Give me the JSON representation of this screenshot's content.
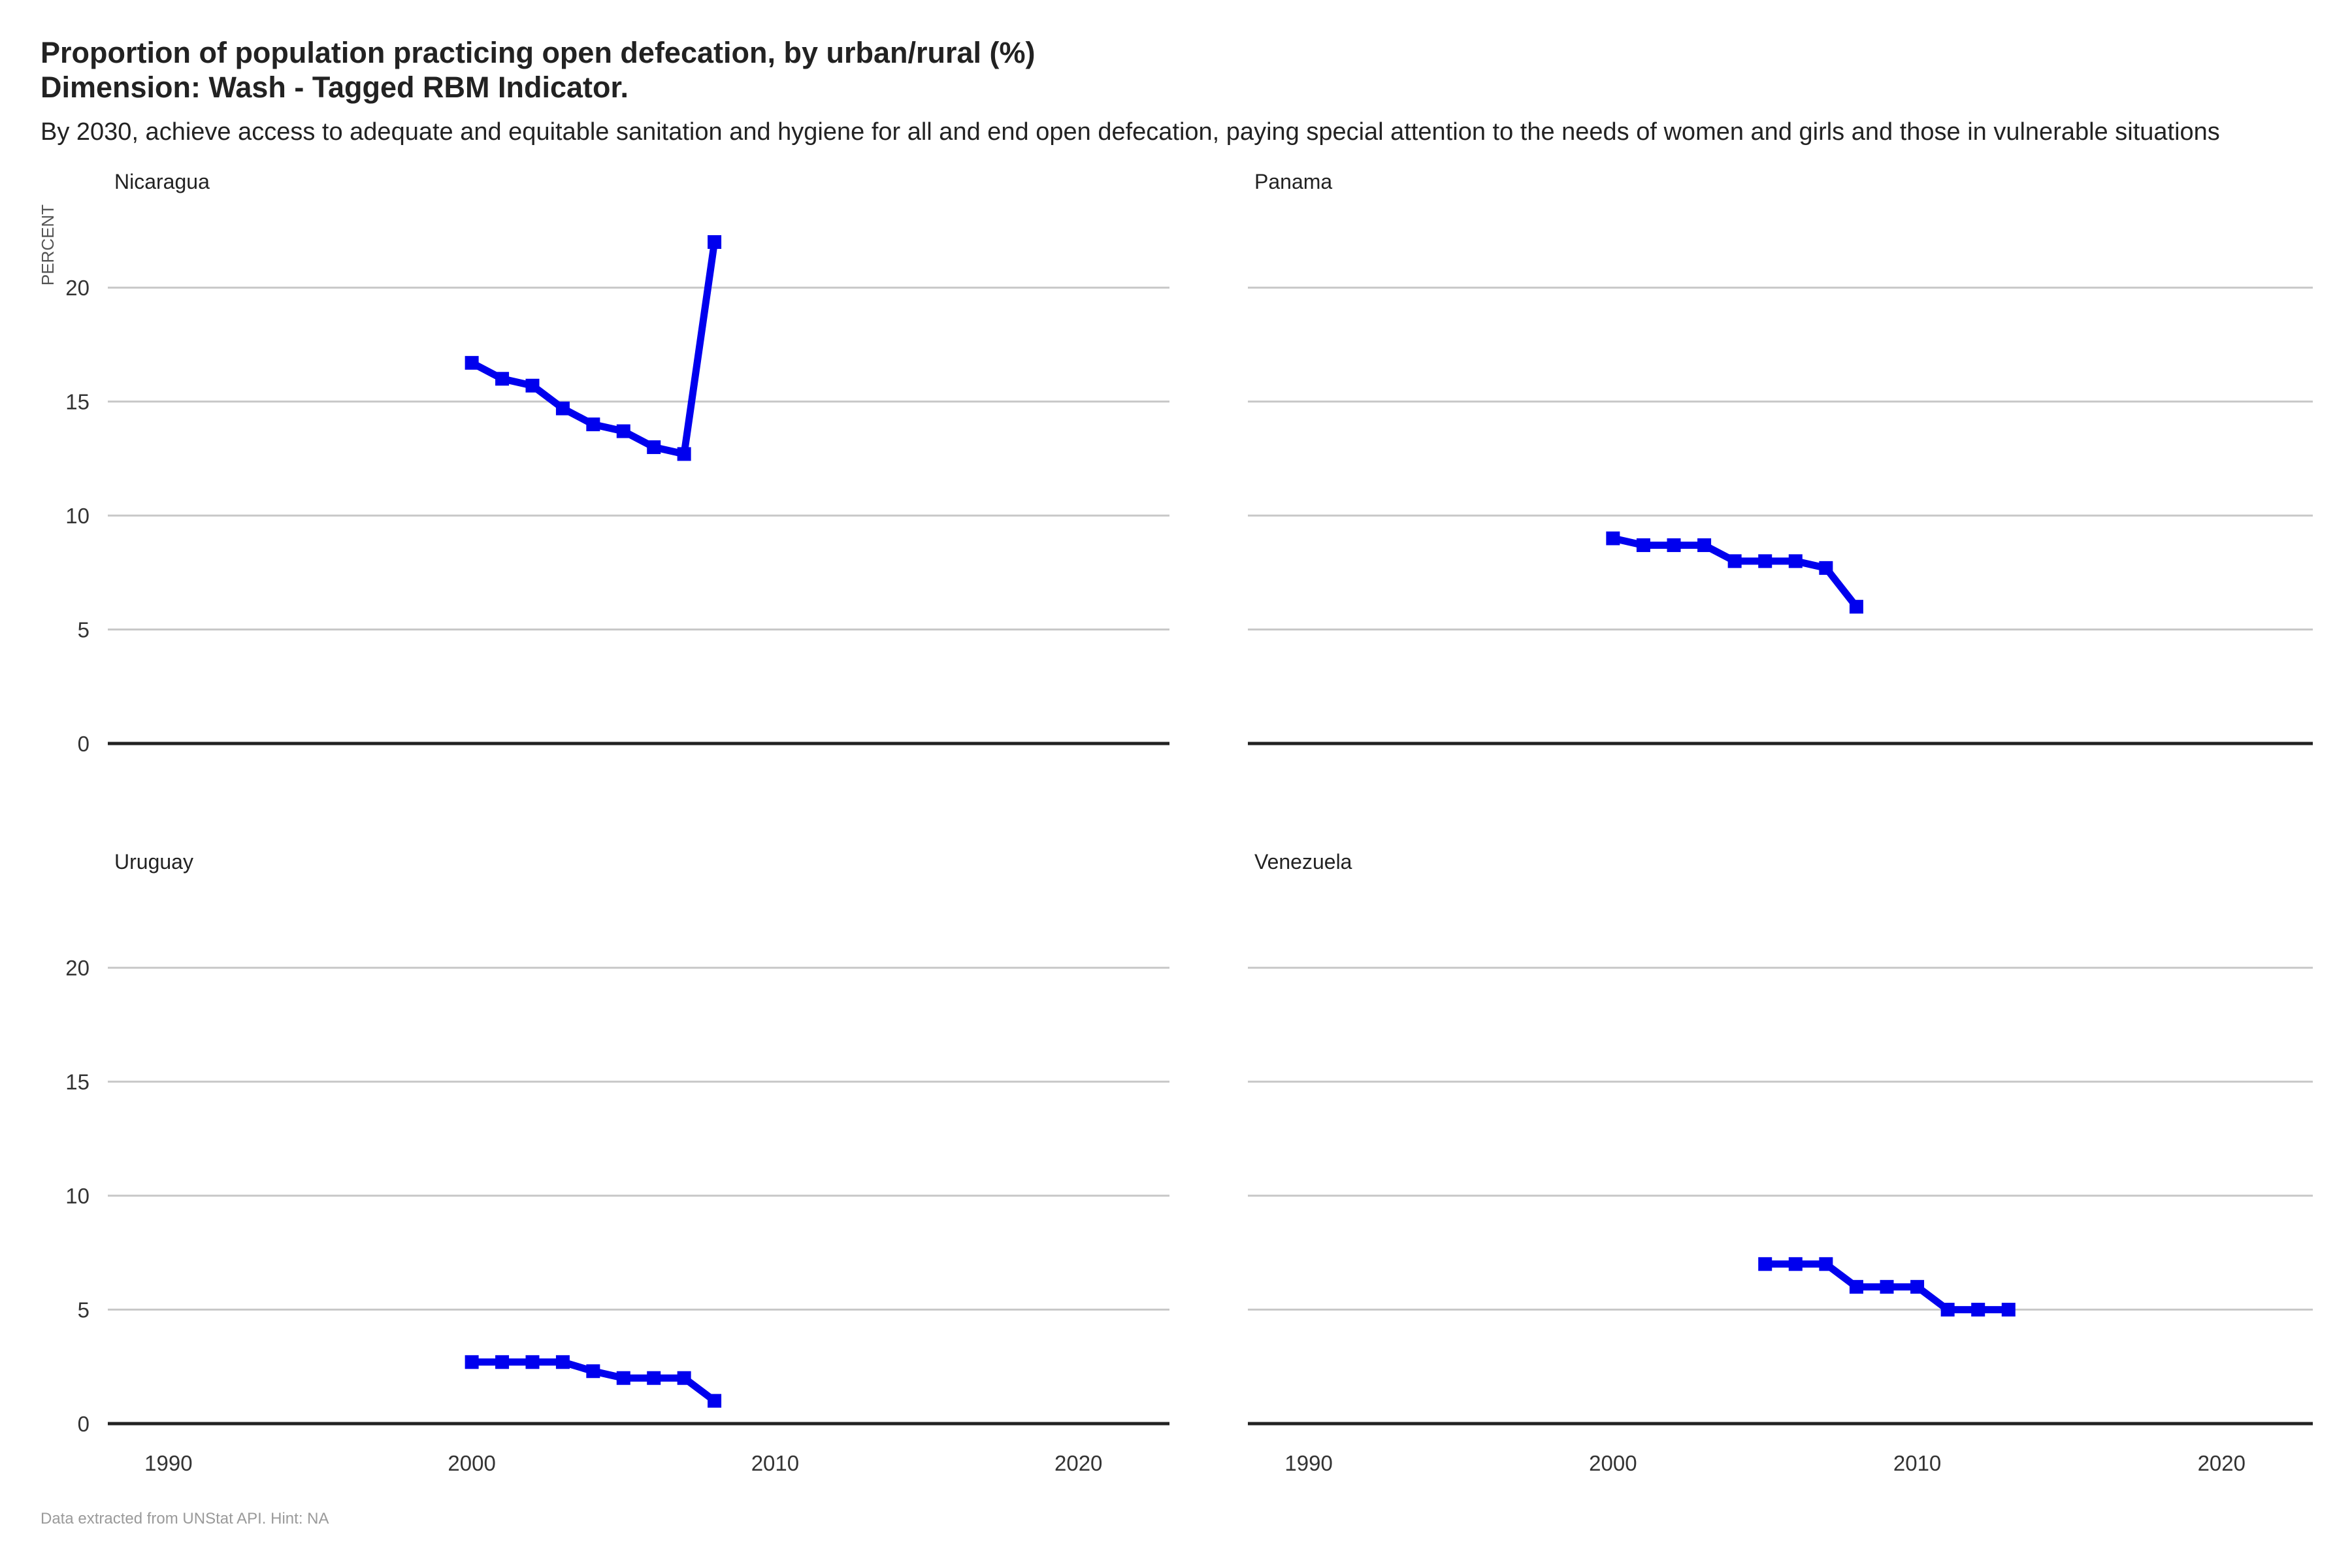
{
  "title": "Proportion of population practicing open defecation, by urban/rural (%)",
  "title_line2": "Dimension: Wash - Tagged RBM  Indicator.",
  "subtitle": "By 2030, achieve access to adequate and equitable sanitation and hygiene for all and end open defecation, paying special attention to the needs of women and girls and those in vulnerable situations",
  "caption": "Data extracted from UNStat API. Hint: NA",
  "colors": {
    "series": "#0000ee",
    "grid": "#c8c8c8",
    "baseline": "#222222"
  },
  "chart_data": {
    "type": "line",
    "layout": "facet-grid-2x2",
    "ylabel": "PERCENT",
    "xlim": [
      1988,
      2023
    ],
    "ylim": [
      0,
      22.5
    ],
    "x_ticks": [
      1990,
      2000,
      2010,
      2020
    ],
    "y_ticks": [
      0,
      5,
      10,
      15,
      20
    ],
    "grid": "horizontal",
    "marker": "square",
    "facets": [
      {
        "name": "Nicaragua",
        "x": [
          2000,
          2001,
          2002,
          2003,
          2004,
          2005,
          2006,
          2007,
          2008
        ],
        "y": [
          16.7,
          16.0,
          15.7,
          14.7,
          14.0,
          13.7,
          13.0,
          12.7,
          22.0
        ]
      },
      {
        "name": "Panama",
        "x": [
          2000,
          2001,
          2002,
          2003,
          2004,
          2005,
          2006,
          2007,
          2008
        ],
        "y": [
          9.0,
          8.7,
          8.7,
          8.7,
          8.0,
          8.0,
          8.0,
          7.7,
          6.0
        ]
      },
      {
        "name": "Uruguay",
        "x": [
          2000,
          2001,
          2002,
          2003,
          2004,
          2005,
          2006,
          2007,
          2008
        ],
        "y": [
          2.7,
          2.7,
          2.7,
          2.7,
          2.3,
          2.0,
          2.0,
          2.0,
          1.0
        ]
      },
      {
        "name": "Venezuela",
        "x": [
          2005,
          2006,
          2007,
          2008,
          2009,
          2010,
          2011,
          2012,
          2013
        ],
        "y": [
          7.0,
          7.0,
          7.0,
          6.0,
          6.0,
          6.0,
          5.0,
          5.0,
          5.0
        ]
      }
    ]
  }
}
